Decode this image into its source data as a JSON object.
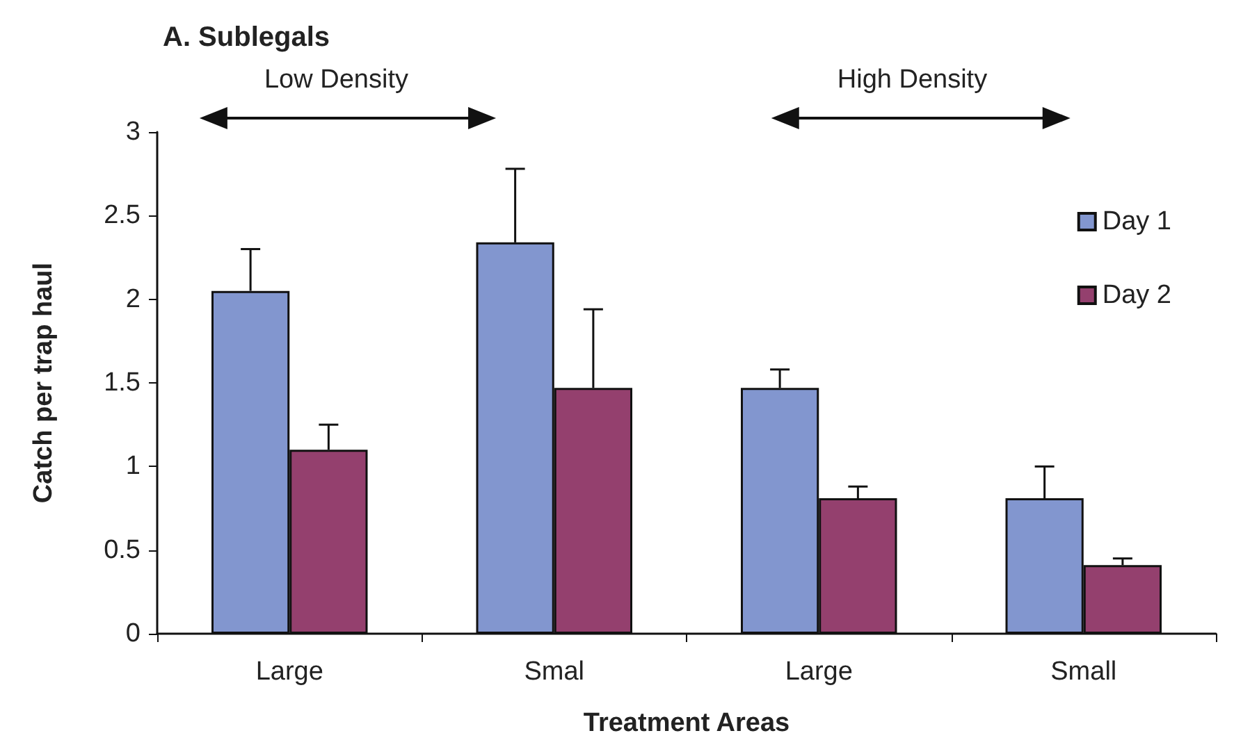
{
  "chart_data": {
    "type": "bar",
    "title": "A. Sublegals",
    "xlabel": "Treatment Areas",
    "ylabel": "Catch per trap haul",
    "categories": [
      "Large",
      "Smal",
      "Large",
      "Small"
    ],
    "series": [
      {
        "name": "Day 1",
        "color": "#8296cf",
        "values": [
          2.05,
          2.34,
          1.47,
          0.81
        ],
        "errors": [
          [
            2.05,
            2.3
          ],
          [
            2.34,
            2.78
          ],
          [
            1.47,
            1.58
          ],
          [
            0.81,
            1.0
          ]
        ]
      },
      {
        "name": "Day 2",
        "color": "#94406e",
        "values": [
          1.1,
          1.47,
          0.81,
          0.41
        ],
        "errors": [
          [
            1.1,
            1.25
          ],
          [
            1.47,
            1.94
          ],
          [
            0.81,
            0.88
          ],
          [
            0.41,
            0.45
          ]
        ]
      }
    ],
    "ylim": [
      0,
      3
    ],
    "yticks": [
      0,
      0.5,
      1,
      1.5,
      2,
      2.5,
      3
    ],
    "grid": false,
    "legend": "right",
    "annotations": [
      "Low Density",
      "High Density"
    ]
  }
}
